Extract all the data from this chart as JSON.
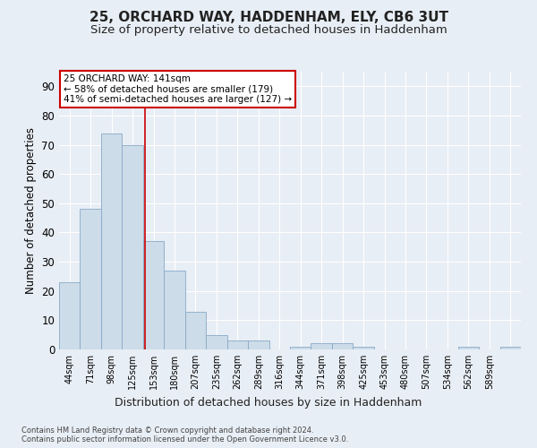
{
  "title1": "25, ORCHARD WAY, HADDENHAM, ELY, CB6 3UT",
  "title2": "Size of property relative to detached houses in Haddenham",
  "xlabel": "Distribution of detached houses by size in Haddenham",
  "ylabel": "Number of detached properties",
  "bar_values": [
    23,
    48,
    74,
    70,
    37,
    27,
    13,
    5,
    3,
    3,
    0,
    1,
    2,
    2,
    1,
    0,
    0,
    0,
    0,
    1,
    0,
    1
  ],
  "bar_labels": [
    "44sqm",
    "71sqm",
    "98sqm",
    "125sqm",
    "153sqm",
    "180sqm",
    "207sqm",
    "235sqm",
    "262sqm",
    "289sqm",
    "316sqm",
    "344sqm",
    "371sqm",
    "398sqm",
    "425sqm",
    "453sqm",
    "480sqm",
    "507sqm",
    "534sqm",
    "562sqm",
    "589sqm",
    ""
  ],
  "bar_color": "#ccdce8",
  "bar_edge_color": "#88aac8",
  "bar_width": 1.0,
  "ylim": [
    0,
    95
  ],
  "yticks": [
    0,
    10,
    20,
    30,
    40,
    50,
    60,
    70,
    80,
    90
  ],
  "property_line_x": 3.59,
  "property_line_color": "#cc0000",
  "annotation_text": "25 ORCHARD WAY: 141sqm\n← 58% of detached houses are smaller (179)\n41% of semi-detached houses are larger (127) →",
  "annotation_box_color": "#ffffff",
  "annotation_box_edge_color": "#cc0000",
  "bg_color": "#e8eef5",
  "plot_bg_color": "#e8eef5",
  "footer_text": "Contains HM Land Registry data © Crown copyright and database right 2024.\nContains public sector information licensed under the Open Government Licence v3.0.",
  "title1_fontsize": 11,
  "title2_fontsize": 9.5,
  "xlabel_fontsize": 9,
  "ylabel_fontsize": 8.5,
  "grid_color": "#ffffff",
  "tick_label_fontsize": 7,
  "annotation_fontsize": 7.5
}
